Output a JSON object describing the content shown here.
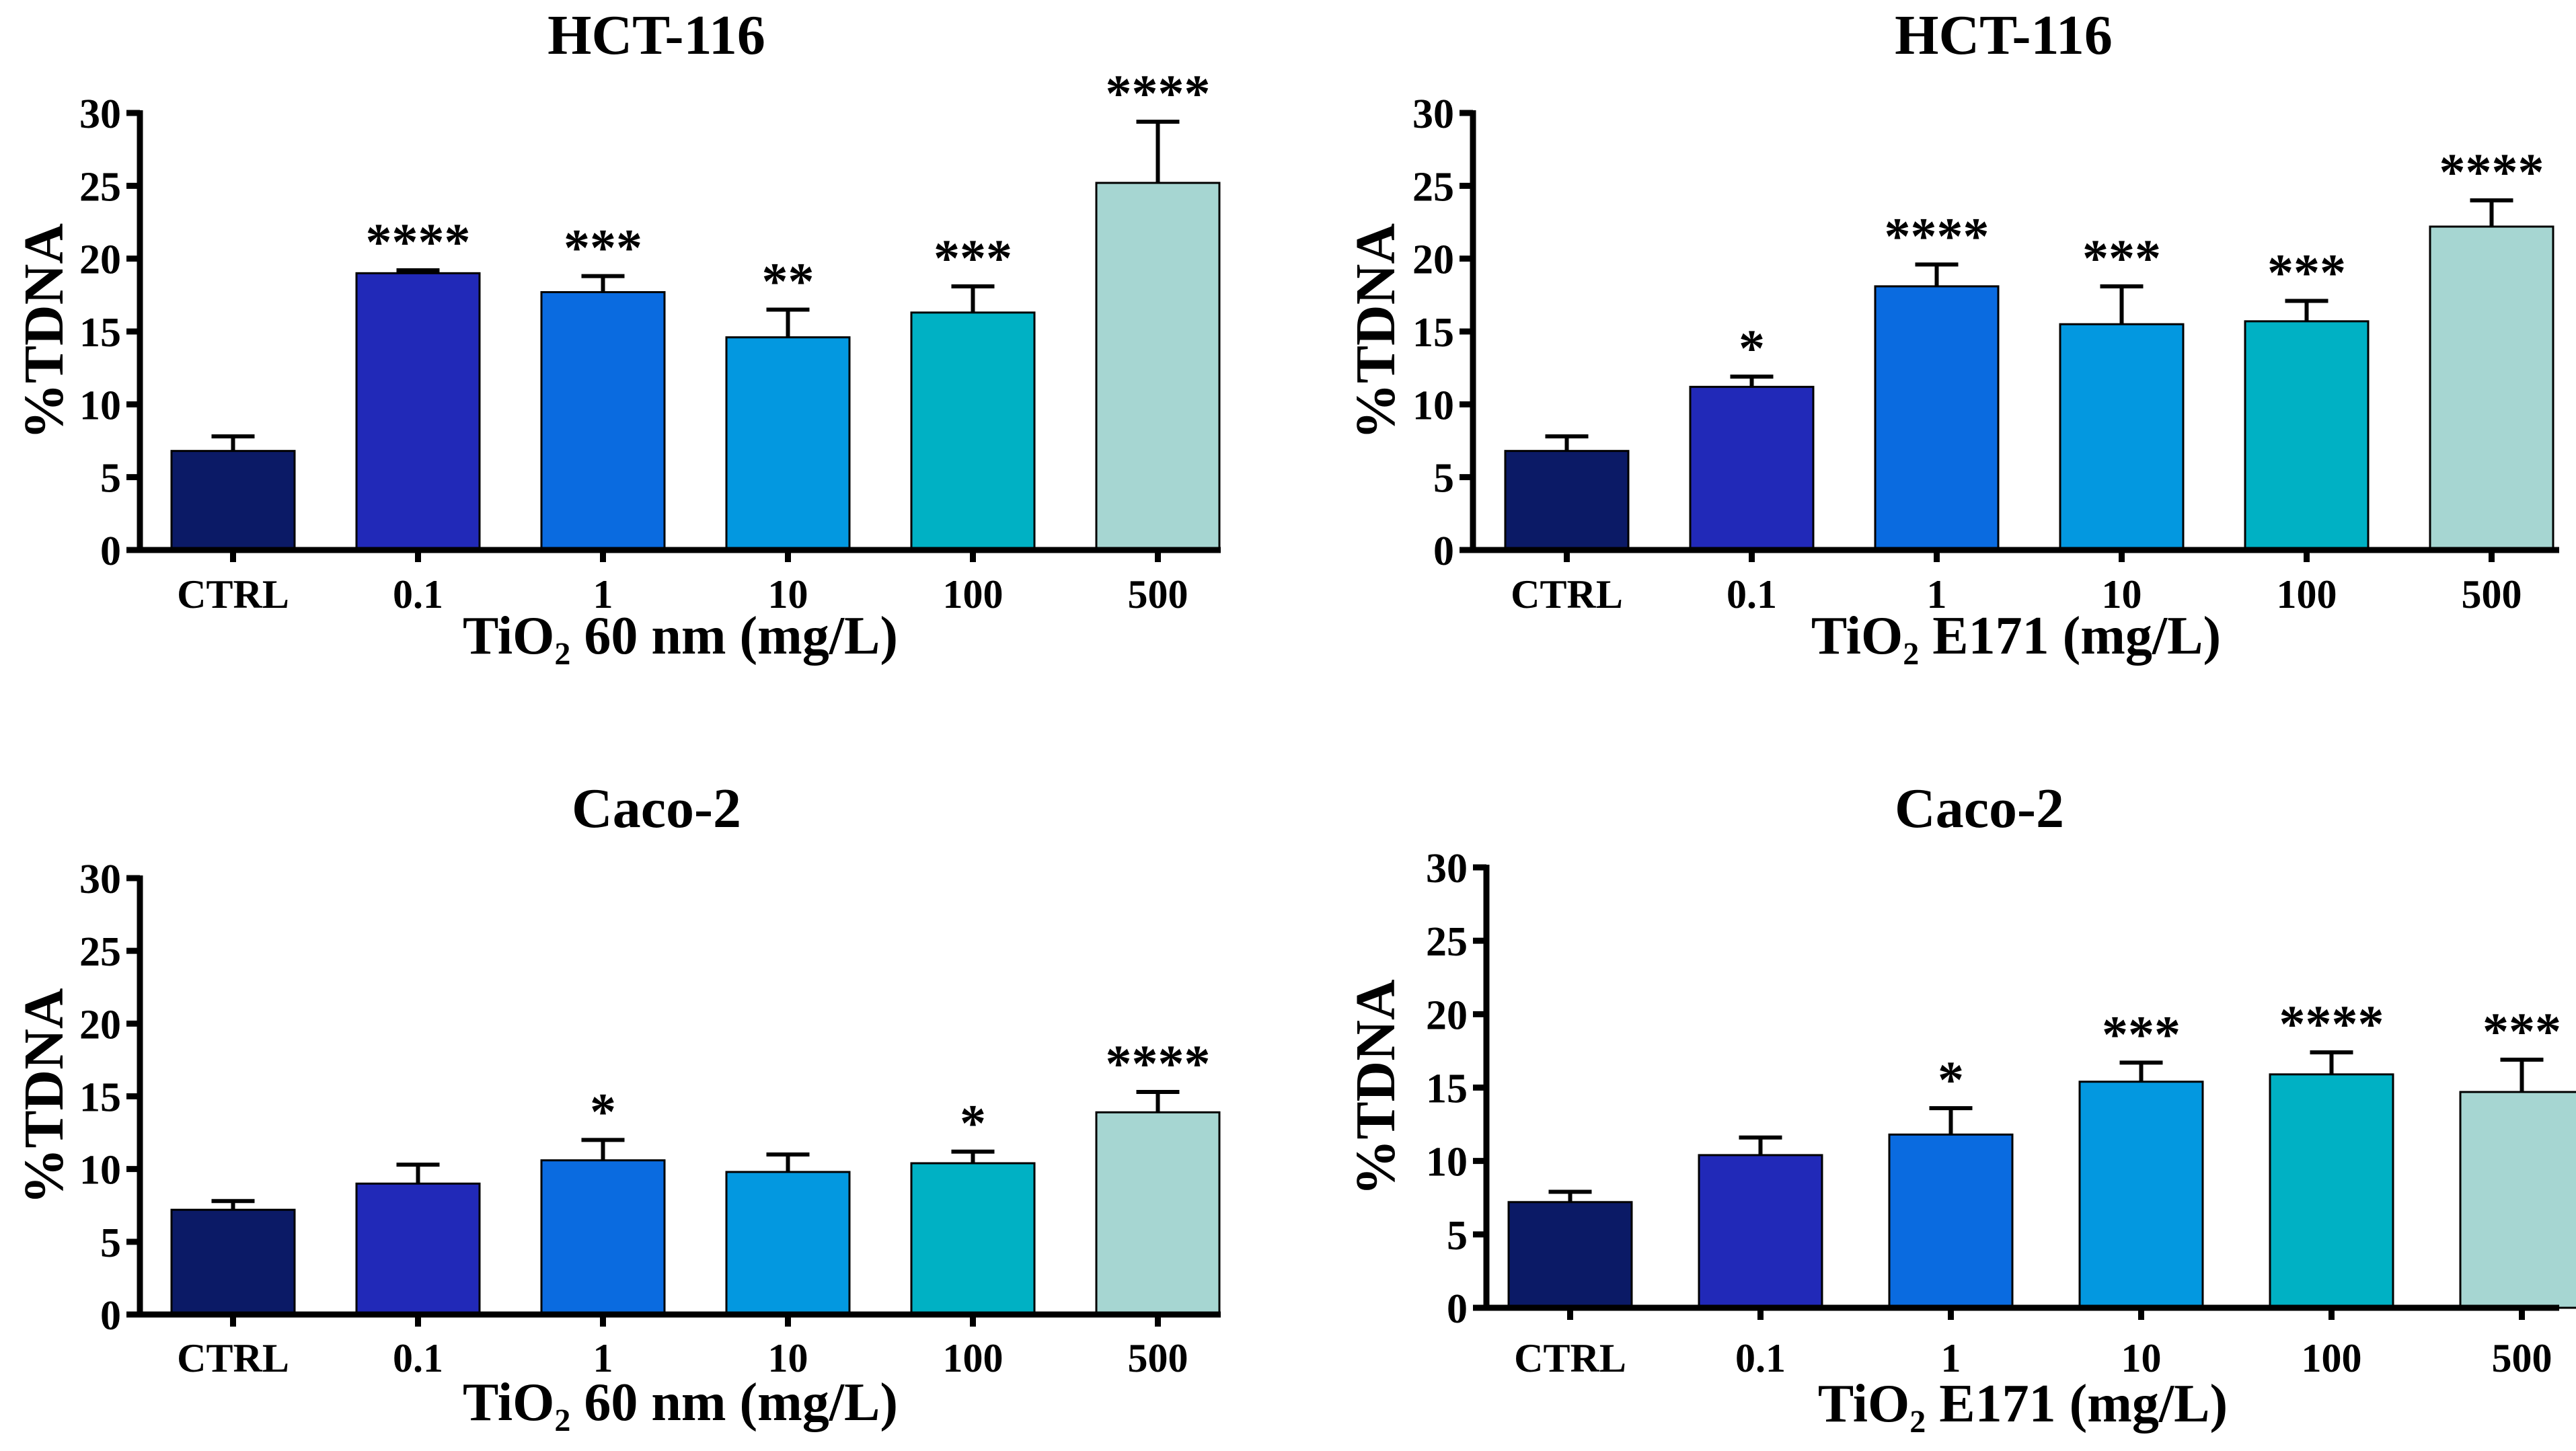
{
  "colors": {
    "bars": [
      "#0b1a66",
      "#2129b8",
      "#0a6be0",
      "#0398e0",
      "#00b1c4",
      "#a6d6d2"
    ],
    "axis": "#000000"
  },
  "chart_data": [
    {
      "type": "bar",
      "title": "HCT-116",
      "ylabel": "%TDNA",
      "xlabel": "TiO₂ 60 nm (mg/L)",
      "ylim": [
        0,
        30
      ],
      "yticks": [
        0,
        5,
        10,
        15,
        20,
        25,
        30
      ],
      "categories": [
        "CTRL",
        "0.1",
        "1",
        "10",
        "100",
        "500"
      ],
      "values": [
        6.8,
        19.0,
        17.7,
        14.6,
        16.3,
        25.2
      ],
      "errors": [
        1.0,
        0.2,
        1.1,
        1.9,
        1.8,
        4.2
      ],
      "significance": [
        "",
        "****",
        "***",
        "**",
        "***",
        "****"
      ]
    },
    {
      "type": "bar",
      "title": "HCT-116",
      "ylabel": "%TDNA",
      "xlabel": "TiO₂ E171 (mg/L)",
      "ylim": [
        0,
        30
      ],
      "yticks": [
        0,
        5,
        10,
        15,
        20,
        25,
        30
      ],
      "categories": [
        "CTRL",
        "0.1",
        "1",
        "10",
        "100",
        "500"
      ],
      "values": [
        6.8,
        11.2,
        18.1,
        15.5,
        15.7,
        22.2
      ],
      "errors": [
        1.0,
        0.7,
        1.5,
        2.6,
        1.4,
        1.8
      ],
      "significance": [
        "",
        "*",
        "****",
        "***",
        "***",
        "****"
      ]
    },
    {
      "type": "bar",
      "title": "Caco-2",
      "ylabel": "%TDNA",
      "xlabel": "TiO₂ 60 nm (mg/L)",
      "ylim": [
        0,
        30
      ],
      "yticks": [
        0,
        5,
        10,
        15,
        20,
        25,
        30
      ],
      "categories": [
        "CTRL",
        "0.1",
        "1",
        "10",
        "100",
        "500"
      ],
      "values": [
        7.2,
        9.0,
        10.6,
        9.8,
        10.4,
        13.9
      ],
      "errors": [
        0.6,
        1.3,
        1.4,
        1.2,
        0.8,
        1.4
      ],
      "significance": [
        "",
        "",
        "*",
        "",
        "*",
        "****"
      ]
    },
    {
      "type": "bar",
      "title": "Caco-2",
      "ylabel": "%TDNA",
      "xlabel": "TiO₂ E171 (mg/L)",
      "ylim": [
        0,
        30
      ],
      "yticks": [
        0,
        5,
        10,
        15,
        20,
        25,
        30
      ],
      "categories": [
        "CTRL",
        "0.1",
        "1",
        "10",
        "100",
        "500"
      ],
      "values": [
        7.2,
        10.4,
        11.8,
        15.4,
        15.9,
        14.7
      ],
      "errors": [
        0.7,
        1.2,
        1.8,
        1.3,
        1.5,
        2.2
      ],
      "significance": [
        "",
        "",
        "*",
        "***",
        "****",
        "***"
      ]
    }
  ]
}
